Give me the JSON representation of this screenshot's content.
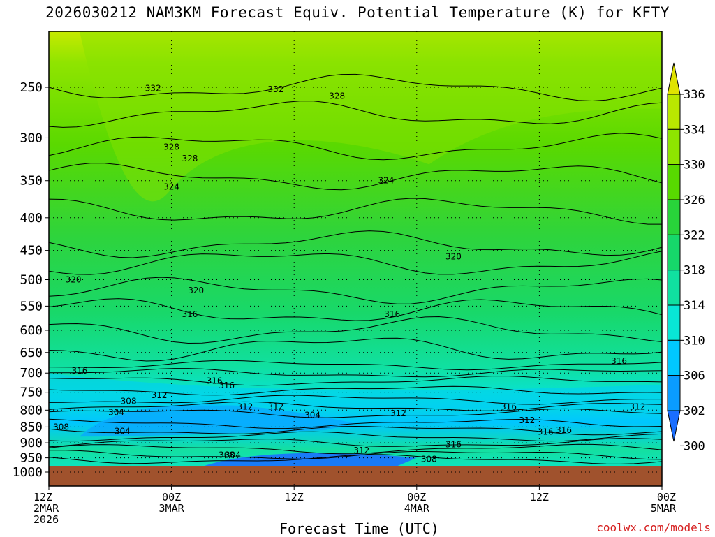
{
  "chart_data": {
    "type": "heatmap",
    "title": "2026030212 NAM3KM Forecast Equiv. Potential Temperature (K) for KFTY",
    "xlabel": "Forecast Time (UTC)",
    "ylabel": "",
    "credit": "coolwx.com/models",
    "y_scale": "pressure (log)",
    "ylim": [
      1000,
      200
    ],
    "y_ticks": [
      250,
      300,
      350,
      400,
      450,
      500,
      550,
      600,
      650,
      700,
      750,
      800,
      850,
      900,
      950,
      1000
    ],
    "x_ticks": [
      {
        "lines": [
          "12Z",
          "2MAR",
          "2026"
        ]
      },
      {
        "lines": [
          "00Z",
          "3MAR"
        ]
      },
      {
        "lines": [
          "12Z"
        ]
      },
      {
        "lines": [
          "00Z",
          "4MAR"
        ]
      },
      {
        "lines": [
          "12Z"
        ]
      },
      {
        "lines": [
          "00Z",
          "5MAR"
        ]
      }
    ],
    "colorbar": {
      "levels": [
        336,
        334,
        330,
        326,
        322,
        318,
        314,
        310,
        306,
        302,
        300
      ],
      "colors": [
        "#e0e300",
        "#b9e800",
        "#8ee400",
        "#58da00",
        "#28d43a",
        "#16d86a",
        "#10e0a0",
        "#08e6d6",
        "#00c8ff",
        "#0a9cff",
        "#1a6eff"
      ]
    },
    "contour_labels": [
      {
        "text": "332",
        "x": 0.17,
        "y": 251
      },
      {
        "text": "332",
        "x": 0.37,
        "y": 252
      },
      {
        "text": "328",
        "x": 0.47,
        "y": 258
      },
      {
        "text": "328",
        "x": 0.2,
        "y": 310
      },
      {
        "text": "328",
        "x": 0.23,
        "y": 323
      },
      {
        "text": "324",
        "x": 0.2,
        "y": 358
      },
      {
        "text": "324",
        "x": 0.55,
        "y": 350
      },
      {
        "text": "320",
        "x": 0.04,
        "y": 500
      },
      {
        "text": "320",
        "x": 0.24,
        "y": 520
      },
      {
        "text": "320",
        "x": 0.66,
        "y": 460
      },
      {
        "text": "316",
        "x": 0.23,
        "y": 566
      },
      {
        "text": "316",
        "x": 0.56,
        "y": 566
      },
      {
        "text": "316",
        "x": 0.05,
        "y": 694
      },
      {
        "text": "316",
        "x": 0.27,
        "y": 720
      },
      {
        "text": "316",
        "x": 0.29,
        "y": 732
      },
      {
        "text": "316",
        "x": 0.93,
        "y": 670
      },
      {
        "text": "312",
        "x": 0.18,
        "y": 758
      },
      {
        "text": "312",
        "x": 0.32,
        "y": 790
      },
      {
        "text": "312",
        "x": 0.37,
        "y": 790
      },
      {
        "text": "312",
        "x": 0.57,
        "y": 810
      },
      {
        "text": "312",
        "x": 0.51,
        "y": 925
      },
      {
        "text": "316",
        "x": 0.75,
        "y": 790
      },
      {
        "text": "316",
        "x": 0.81,
        "y": 865
      },
      {
        "text": "316",
        "x": 0.66,
        "y": 905
      },
      {
        "text": "308",
        "x": 0.13,
        "y": 775
      },
      {
        "text": "308",
        "x": 0.02,
        "y": 850
      },
      {
        "text": "308",
        "x": 0.29,
        "y": 940
      },
      {
        "text": "308",
        "x": 0.62,
        "y": 955
      },
      {
        "text": "304",
        "x": 0.11,
        "y": 806
      },
      {
        "text": "304",
        "x": 0.12,
        "y": 863
      },
      {
        "text": "304",
        "x": 0.3,
        "y": 940
      },
      {
        "text": "304",
        "x": 0.43,
        "y": 815
      },
      {
        "text": "312",
        "x": 0.78,
        "y": 830
      },
      {
        "text": "316",
        "x": 0.84,
        "y": 860
      },
      {
        "text": "312",
        "x": 0.96,
        "y": 790
      }
    ]
  }
}
